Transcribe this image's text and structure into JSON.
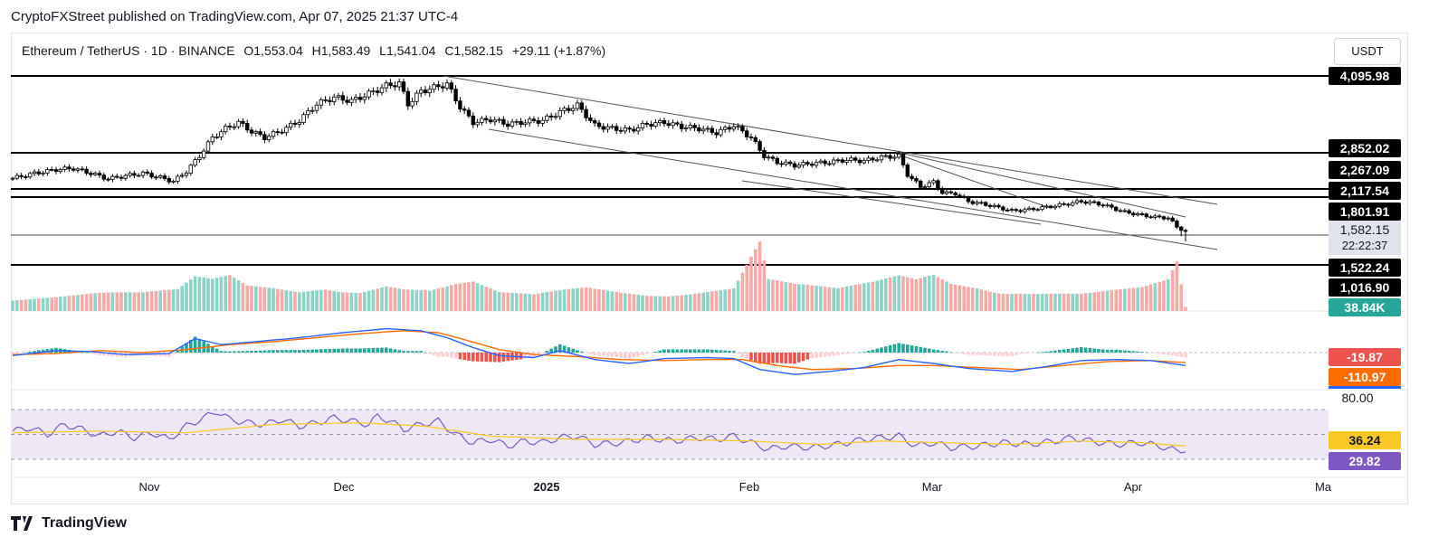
{
  "publish_line": "CryptoFXStreet published on TradingView.com, Apr 07, 2025 21:37 UTC-4",
  "header": {
    "symbol": "Ethereum / TetherUS · 1D · BINANCE",
    "open": "O1,553.04",
    "high": "H1,583.49",
    "low": "L1,541.04",
    "close": "C1,582.15",
    "change": "+29.11 (+1.87%)",
    "currency": "USDT"
  },
  "footer": {
    "brand": "TradingView"
  },
  "colors": {
    "up": "#26a69a",
    "down": "#000000",
    "up_body": "#ffffff",
    "vol_up": "#8ed3c8",
    "vol_down": "#f7a9a7",
    "macd_line": "#2962ff",
    "signal_line": "#ff6d00",
    "rsi_line": "#7e57c2",
    "rsi_ma": "#f9c825",
    "rsi_band": "#ede7f6"
  },
  "chart_data": {
    "type": "candlestick",
    "x_ticks": [
      "Nov",
      "Dec",
      "2025",
      "Feb",
      "Mar",
      "Apr",
      "Ma"
    ],
    "price_levels": [
      {
        "value": 4095.98,
        "label": "4,095.98"
      },
      {
        "value": 2852.02,
        "label": "2,852.02"
      },
      {
        "value": 2267.09,
        "label": "2,267.09"
      },
      {
        "value": 2117.54,
        "label": "2,117.54"
      },
      {
        "value": 1801.91,
        "label": "1,801.91"
      },
      {
        "value": 1522.24,
        "label": "1,522.24"
      },
      {
        "value": 1016.9,
        "label": "1,016.90"
      }
    ],
    "current_price": {
      "label": "1,582.15",
      "countdown": "22:22:37"
    },
    "volume_label": "38.84K",
    "macd_labels": {
      "histogram": "-19.87",
      "macd": "-110.97"
    },
    "rsi_labels": {
      "upper": "80.00",
      "ma": "36.24",
      "rsi": "29.82"
    },
    "close_path": [
      [
        0,
        2440
      ],
      [
        5,
        2520
      ],
      [
        10,
        2580
      ],
      [
        14,
        2600
      ],
      [
        18,
        2520
      ],
      [
        22,
        2430
      ],
      [
        26,
        2480
      ],
      [
        30,
        2520
      ],
      [
        34,
        2450
      ],
      [
        37,
        2390
      ],
      [
        40,
        2550
      ],
      [
        43,
        2800
      ],
      [
        46,
        3100
      ],
      [
        49,
        3250
      ],
      [
        52,
        3350
      ],
      [
        55,
        3200
      ],
      [
        58,
        3100
      ],
      [
        62,
        3220
      ],
      [
        66,
        3380
      ],
      [
        70,
        3650
      ],
      [
        74,
        3760
      ],
      [
        78,
        3700
      ],
      [
        82,
        3820
      ],
      [
        86,
        3950
      ],
      [
        89,
        3990
      ],
      [
        91,
        3650
      ],
      [
        94,
        3860
      ],
      [
        97,
        3920
      ],
      [
        100,
        3980
      ],
      [
        103,
        3600
      ],
      [
        106,
        3350
      ],
      [
        110,
        3400
      ],
      [
        114,
        3320
      ],
      [
        118,
        3360
      ],
      [
        122,
        3380
      ],
      [
        126,
        3520
      ],
      [
        130,
        3630
      ],
      [
        134,
        3300
      ],
      [
        138,
        3250
      ],
      [
        142,
        3220
      ],
      [
        146,
        3320
      ],
      [
        150,
        3350
      ],
      [
        154,
        3280
      ],
      [
        158,
        3250
      ],
      [
        162,
        3180
      ],
      [
        166,
        3300
      ],
      [
        170,
        3100
      ],
      [
        173,
        2800
      ],
      [
        176,
        2700
      ],
      [
        180,
        2650
      ],
      [
        184,
        2680
      ],
      [
        188,
        2700
      ],
      [
        192,
        2740
      ],
      [
        196,
        2720
      ],
      [
        200,
        2780
      ],
      [
        204,
        2800
      ],
      [
        206,
        2500
      ],
      [
        209,
        2300
      ],
      [
        212,
        2380
      ],
      [
        214,
        2200
      ],
      [
        217,
        2180
      ],
      [
        220,
        2050
      ],
      [
        224,
        2000
      ],
      [
        227,
        1950
      ],
      [
        230,
        1900
      ],
      [
        234,
        1920
      ],
      [
        238,
        1960
      ],
      [
        242,
        2000
      ],
      [
        246,
        2050
      ],
      [
        250,
        2010
      ],
      [
        253,
        1950
      ],
      [
        256,
        1880
      ],
      [
        260,
        1830
      ],
      [
        263,
        1800
      ],
      [
        266,
        1790
      ],
      [
        268,
        1650
      ],
      [
        270,
        1582
      ]
    ],
    "volume_path": [
      [
        0,
        30
      ],
      [
        10,
        34
      ],
      [
        20,
        40
      ],
      [
        30,
        38
      ],
      [
        38,
        44
      ],
      [
        42,
        70
      ],
      [
        46,
        66
      ],
      [
        50,
        75
      ],
      [
        54,
        55
      ],
      [
        60,
        52
      ],
      [
        66,
        46
      ],
      [
        72,
        58
      ],
      [
        80,
        48
      ],
      [
        86,
        60
      ],
      [
        90,
        50
      ],
      [
        96,
        44
      ],
      [
        102,
        56
      ],
      [
        106,
        60
      ],
      [
        112,
        38
      ],
      [
        120,
        34
      ],
      [
        126,
        44
      ],
      [
        132,
        52
      ],
      [
        138,
        46
      ],
      [
        146,
        40
      ],
      [
        156,
        44
      ],
      [
        166,
        52
      ],
      [
        170,
        120
      ],
      [
        172,
        150
      ],
      [
        174,
        68
      ],
      [
        180,
        56
      ],
      [
        190,
        46
      ],
      [
        198,
        60
      ],
      [
        204,
        76
      ],
      [
        208,
        70
      ],
      [
        212,
        84
      ],
      [
        216,
        66
      ],
      [
        222,
        60
      ],
      [
        228,
        48
      ],
      [
        236,
        42
      ],
      [
        246,
        38
      ],
      [
        254,
        44
      ],
      [
        260,
        48
      ],
      [
        266,
        64
      ],
      [
        268,
        100
      ],
      [
        270,
        8
      ]
    ],
    "macd_path": [
      [
        0,
        -6
      ],
      [
        10,
        4
      ],
      [
        18,
        2
      ],
      [
        26,
        -4
      ],
      [
        36,
        -2
      ],
      [
        42,
        28
      ],
      [
        48,
        16
      ],
      [
        56,
        22
      ],
      [
        66,
        30
      ],
      [
        76,
        40
      ],
      [
        86,
        48
      ],
      [
        94,
        44
      ],
      [
        100,
        30
      ],
      [
        106,
        10
      ],
      [
        112,
        -6
      ],
      [
        120,
        -10
      ],
      [
        126,
        4
      ],
      [
        134,
        -14
      ],
      [
        142,
        -22
      ],
      [
        150,
        -12
      ],
      [
        160,
        -10
      ],
      [
        166,
        -12
      ],
      [
        172,
        -34
      ],
      [
        180,
        -44
      ],
      [
        188,
        -38
      ],
      [
        196,
        -30
      ],
      [
        204,
        -14
      ],
      [
        212,
        -22
      ],
      [
        220,
        -32
      ],
      [
        230,
        -38
      ],
      [
        238,
        -28
      ],
      [
        246,
        -16
      ],
      [
        254,
        -14
      ],
      [
        262,
        -16
      ],
      [
        270,
        -26
      ]
    ],
    "signal_path": [
      [
        0,
        -4
      ],
      [
        10,
        -2
      ],
      [
        20,
        4
      ],
      [
        30,
        0
      ],
      [
        40,
        6
      ],
      [
        50,
        16
      ],
      [
        60,
        22
      ],
      [
        70,
        30
      ],
      [
        80,
        38
      ],
      [
        90,
        44
      ],
      [
        98,
        40
      ],
      [
        104,
        26
      ],
      [
        112,
        6
      ],
      [
        120,
        -4
      ],
      [
        130,
        -8
      ],
      [
        140,
        -14
      ],
      [
        150,
        -16
      ],
      [
        160,
        -14
      ],
      [
        168,
        -14
      ],
      [
        176,
        -26
      ],
      [
        184,
        -34
      ],
      [
        194,
        -32
      ],
      [
        204,
        -26
      ],
      [
        212,
        -26
      ],
      [
        222,
        -30
      ],
      [
        232,
        -34
      ],
      [
        242,
        -26
      ],
      [
        252,
        -18
      ],
      [
        262,
        -16
      ],
      [
        270,
        -20
      ]
    ],
    "rsi_path": [
      [
        0,
        54
      ],
      [
        4,
        58
      ],
      [
        8,
        50
      ],
      [
        12,
        62
      ],
      [
        16,
        56
      ],
      [
        20,
        48
      ],
      [
        24,
        54
      ],
      [
        28,
        46
      ],
      [
        32,
        52
      ],
      [
        36,
        44
      ],
      [
        40,
        60
      ],
      [
        44,
        70
      ],
      [
        47,
        78
      ],
      [
        50,
        68
      ],
      [
        54,
        64
      ],
      [
        58,
        62
      ],
      [
        62,
        68
      ],
      [
        66,
        60
      ],
      [
        70,
        64
      ],
      [
        74,
        70
      ],
      [
        78,
        66
      ],
      [
        82,
        62
      ],
      [
        84,
        72
      ],
      [
        87,
        66
      ],
      [
        90,
        56
      ],
      [
        94,
        62
      ],
      [
        98,
        66
      ],
      [
        102,
        50
      ],
      [
        106,
        40
      ],
      [
        110,
        44
      ],
      [
        114,
        36
      ],
      [
        118,
        42
      ],
      [
        122,
        40
      ],
      [
        126,
        46
      ],
      [
        130,
        48
      ],
      [
        134,
        38
      ],
      [
        140,
        40
      ],
      [
        146,
        46
      ],
      [
        152,
        42
      ],
      [
        158,
        46
      ],
      [
        162,
        44
      ],
      [
        166,
        48
      ],
      [
        170,
        40
      ],
      [
        174,
        32
      ],
      [
        178,
        36
      ],
      [
        184,
        34
      ],
      [
        190,
        38
      ],
      [
        196,
        44
      ],
      [
        200,
        46
      ],
      [
        204,
        48
      ],
      [
        208,
        36
      ],
      [
        212,
        40
      ],
      [
        216,
        34
      ],
      [
        222,
        36
      ],
      [
        228,
        40
      ],
      [
        234,
        38
      ],
      [
        240,
        42
      ],
      [
        244,
        46
      ],
      [
        248,
        42
      ],
      [
        254,
        38
      ],
      [
        260,
        40
      ],
      [
        264,
        36
      ],
      [
        268,
        30
      ],
      [
        270,
        32
      ]
    ],
    "rsi_ma_path": [
      [
        0,
        52
      ],
      [
        20,
        54
      ],
      [
        40,
        52
      ],
      [
        60,
        62
      ],
      [
        80,
        64
      ],
      [
        95,
        60
      ],
      [
        110,
        48
      ],
      [
        130,
        44
      ],
      [
        150,
        44
      ],
      [
        170,
        42
      ],
      [
        186,
        38
      ],
      [
        200,
        42
      ],
      [
        214,
        40
      ],
      [
        230,
        38
      ],
      [
        246,
        42
      ],
      [
        260,
        40
      ],
      [
        270,
        36
      ]
    ]
  }
}
